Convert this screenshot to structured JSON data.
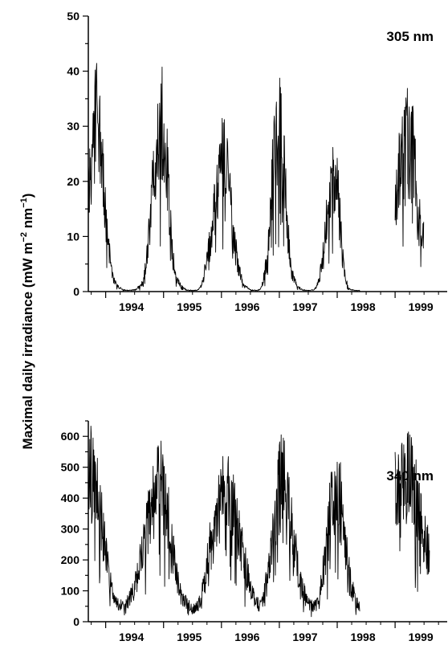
{
  "figure": {
    "ylabel_main": "Maximal daily irradiance (mW m",
    "ylabel_exp1": "−2",
    "ylabel_mid": " nm",
    "ylabel_exp2": "−1",
    "ylabel_end": ")"
  },
  "chart_data": [
    {
      "type": "line",
      "title": "",
      "label": "305 nm",
      "xlabel": "",
      "ylabel": "Maximal daily irradiance (mW m−2 nm−1)",
      "xlim": [
        1993.7,
        1999.9
      ],
      "ylim": [
        0,
        50
      ],
      "y_ticks": [
        0,
        10,
        20,
        30,
        40,
        50
      ],
      "x_tick_labels": [
        "1994",
        "1995",
        "1996",
        "1997",
        "1998",
        "1999"
      ],
      "grid": false,
      "series": [
        {
          "x": [
            1993.7,
            1993.75,
            1993.8,
            1993.85,
            1993.9,
            1993.95,
            1994.0,
            1994.05,
            1994.1,
            1994.15,
            1994.2,
            1994.3,
            1994.4,
            1994.5,
            1994.6,
            1994.65,
            1994.7,
            1994.75,
            1994.8,
            1994.85,
            1994.9,
            1994.95,
            1995.0,
            1995.05,
            1995.1,
            1995.15,
            1995.2,
            1995.3,
            1995.4,
            1995.5,
            1995.6,
            1995.65,
            1995.7,
            1995.8,
            1995.9,
            1996.0,
            1996.05,
            1996.1,
            1996.15,
            1996.2,
            1996.3,
            1996.4,
            1996.5,
            1996.6,
            1996.65,
            1996.7,
            1996.75,
            1996.8,
            1996.85,
            1996.9,
            1996.95,
            1997.0,
            1997.05,
            1997.1,
            1997.15,
            1997.2,
            1997.3,
            1997.4,
            1997.5,
            1997.6,
            1997.65,
            1997.7,
            1997.75,
            1997.8,
            1997.85,
            1997.9,
            1997.95,
            1998.0,
            1998.05,
            1998.1,
            1998.15,
            1998.2,
            1998.3,
            1998.4
          ],
          "values": [
            19,
            25,
            30,
            33,
            29,
            22,
            14,
            8,
            4,
            2,
            1,
            0.3,
            0.2,
            0.3,
            1,
            2,
            5,
            11,
            18,
            26,
            30,
            32,
            30,
            25,
            15,
            8,
            3,
            1,
            0.3,
            0.2,
            0.3,
            1,
            3,
            9,
            17,
            23,
            25,
            24,
            17,
            11,
            4,
            1,
            0.3,
            0.2,
            0.3,
            1,
            4,
            9,
            16,
            24,
            29,
            31,
            27,
            20,
            11,
            4,
            1,
            0.3,
            0.2,
            0.3,
            1,
            3,
            7,
            12,
            17,
            21,
            24,
            21,
            13,
            6,
            2,
            0.5,
            0.2,
            0.2
          ]
        },
        {
          "x": [
            1999.0,
            1999.05,
            1999.1,
            1999.15,
            1999.2,
            1999.25,
            1999.3,
            1999.35,
            1999.4,
            1999.45,
            1999.5
          ],
          "values": [
            14,
            20,
            25,
            28,
            30,
            31,
            28,
            22,
            16,
            12,
            10
          ]
        }
      ]
    },
    {
      "type": "line",
      "title": "",
      "label": "340 nm",
      "xlabel": "",
      "ylabel": "Maximal daily irradiance (mW m−2 nm−1)",
      "xlim": [
        1993.7,
        1999.9
      ],
      "ylim": [
        0,
        650
      ],
      "y_ticks": [
        0,
        100,
        200,
        300,
        400,
        500,
        600
      ],
      "x_tick_labels": [
        "1994",
        "1995",
        "1996",
        "1997",
        "1998",
        "1999"
      ],
      "grid": false,
      "series": [
        {
          "x": [
            1993.7,
            1993.75,
            1993.8,
            1993.85,
            1993.9,
            1993.95,
            1994.0,
            1994.05,
            1994.1,
            1994.15,
            1994.2,
            1994.3,
            1994.4,
            1994.5,
            1994.6,
            1994.65,
            1994.7,
            1994.75,
            1994.8,
            1994.85,
            1994.9,
            1994.95,
            1995.0,
            1995.05,
            1995.1,
            1995.15,
            1995.2,
            1995.3,
            1995.4,
            1995.5,
            1995.6,
            1995.65,
            1995.7,
            1995.8,
            1995.9,
            1996.0,
            1996.05,
            1996.1,
            1996.15,
            1996.2,
            1996.3,
            1996.4,
            1996.5,
            1996.6,
            1996.65,
            1996.7,
            1996.75,
            1996.8,
            1996.85,
            1996.9,
            1996.95,
            1997.0,
            1997.05,
            1997.1,
            1997.15,
            1997.2,
            1997.3,
            1997.4,
            1997.5,
            1997.6,
            1997.65,
            1997.7,
            1997.75,
            1997.8,
            1997.85,
            1997.9,
            1997.95,
            1998.0,
            1998.05,
            1998.1,
            1998.15,
            1998.2,
            1998.3,
            1998.4
          ],
          "values": [
            480,
            490,
            470,
            430,
            370,
            300,
            230,
            160,
            110,
            80,
            60,
            55,
            70,
            120,
            190,
            240,
            290,
            340,
            390,
            420,
            440,
            450,
            430,
            390,
            320,
            250,
            180,
            100,
            60,
            40,
            55,
            80,
            140,
            240,
            330,
            400,
            440,
            450,
            430,
            380,
            300,
            200,
            110,
            70,
            55,
            60,
            100,
            180,
            260,
            340,
            410,
            460,
            480,
            460,
            400,
            320,
            200,
            110,
            60,
            50,
            60,
            90,
            160,
            240,
            320,
            380,
            420,
            440,
            410,
            330,
            240,
            160,
            80,
            40
          ]
        },
        {
          "x": [
            1999.0,
            1999.05,
            1999.1,
            1999.15,
            1999.2,
            1999.25,
            1999.3,
            1999.35,
            1999.4,
            1999.45,
            1999.5,
            1999.55,
            1999.6
          ],
          "values": [
            420,
            430,
            440,
            450,
            460,
            470,
            460,
            420,
            380,
            330,
            290,
            250,
            220
          ]
        }
      ]
    }
  ]
}
